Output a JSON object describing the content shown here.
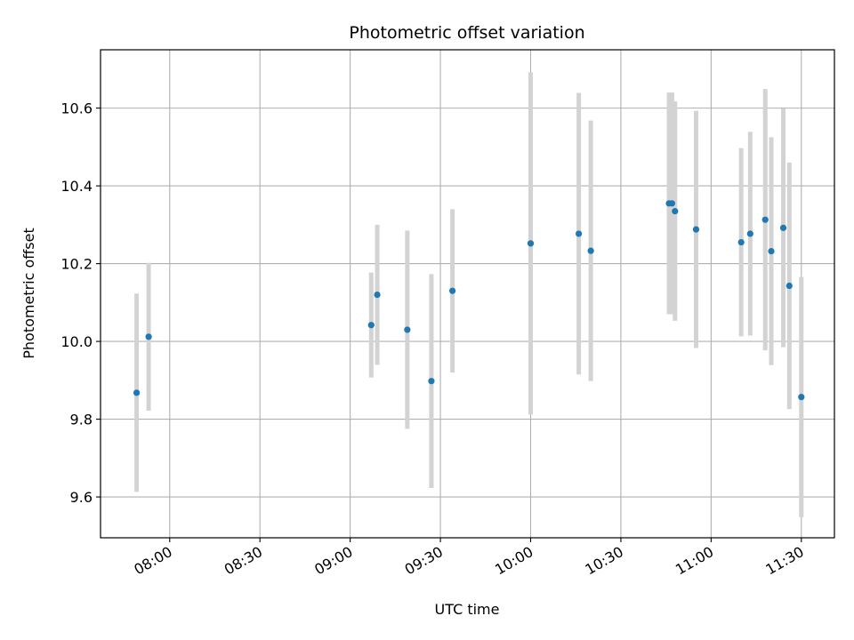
{
  "chart_data": {
    "type": "scatter",
    "title": "Photometric offset variation",
    "xlabel": "UTC time",
    "ylabel": "Photometric offset",
    "x_unit": "UTC time (HH:MM)",
    "x_ticks": [
      "08:00",
      "08:30",
      "09:00",
      "09:30",
      "10:00",
      "10:30",
      "11:00",
      "11:30"
    ],
    "y_ticks": [
      "9.6",
      "9.8",
      "10.0",
      "10.2",
      "10.4",
      "10.6"
    ],
    "xlim": [
      "07:37",
      "11:41"
    ],
    "ylim": [
      9.495,
      10.75
    ],
    "grid": true,
    "point_color": "#1f77b4",
    "errorbar_color": "#d3d3d3",
    "points": [
      {
        "x": "07:49",
        "y": 9.868,
        "yerr": 0.255
      },
      {
        "x": "07:53",
        "y": 10.012,
        "yerr": 0.19
      },
      {
        "x": "09:07",
        "y": 10.042,
        "yerr": 0.135
      },
      {
        "x": "09:09",
        "y": 10.12,
        "yerr": 0.18
      },
      {
        "x": "09:19",
        "y": 10.03,
        "yerr": 0.255
      },
      {
        "x": "09:27",
        "y": 9.898,
        "yerr": 0.275
      },
      {
        "x": "09:34",
        "y": 10.13,
        "yerr": 0.21
      },
      {
        "x": "10:00",
        "y": 10.252,
        "yerr": 0.44
      },
      {
        "x": "10:16",
        "y": 10.277,
        "yerr": 0.362
      },
      {
        "x": "10:20",
        "y": 10.233,
        "yerr": 0.335
      },
      {
        "x": "10:46",
        "y": 10.355,
        "yerr": 0.285
      },
      {
        "x": "10:47",
        "y": 10.355,
        "yerr": 0.285
      },
      {
        "x": "10:48",
        "y": 10.335,
        "yerr": 0.282
      },
      {
        "x": "10:55",
        "y": 10.288,
        "yerr": 0.305
      },
      {
        "x": "11:10",
        "y": 10.255,
        "yerr": 0.242
      },
      {
        "x": "11:13",
        "y": 10.277,
        "yerr": 0.262
      },
      {
        "x": "11:18",
        "y": 10.313,
        "yerr": 0.336
      },
      {
        "x": "11:20",
        "y": 10.232,
        "yerr": 0.293
      },
      {
        "x": "11:24",
        "y": 10.292,
        "yerr": 0.307
      },
      {
        "x": "11:26",
        "y": 10.143,
        "yerr": 0.317
      },
      {
        "x": "11:30",
        "y": 9.857,
        "yerr": 0.309
      }
    ]
  }
}
